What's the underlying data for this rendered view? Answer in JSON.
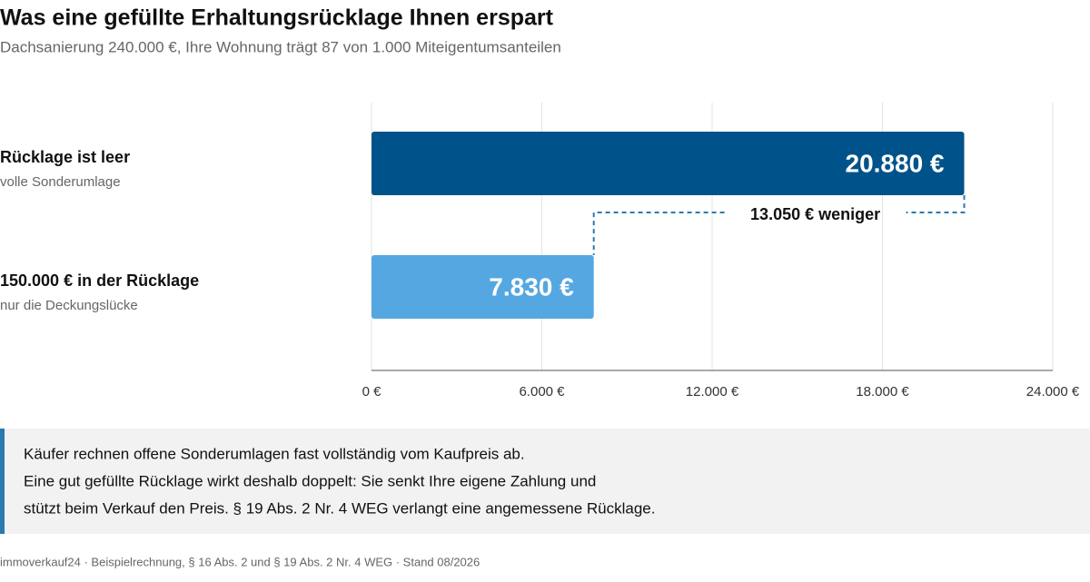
{
  "chart_data": {
    "type": "hbar",
    "title": "Was eine gefüllte Erhaltungsrücklage Ihnen erspart",
    "subtitle": "Dachsanierung 240.000 €, Ihre Wohnung trägt 87 von 1.000 Miteigentumsanteilen",
    "categories": [
      "Rücklage ist leer",
      "150.000 € in der Rücklage"
    ],
    "subcategories": [
      "volle Sonderumlage",
      "nur die Deckungslücke"
    ],
    "values": [
      20880,
      7830
    ],
    "value_labels": [
      "20.880 €",
      "7.830 €"
    ],
    "colors": [
      "#00538a",
      "#55a7e2"
    ],
    "xlim": [
      0,
      24000
    ],
    "xticks": [
      {
        "value": 0,
        "label": "0 €"
      },
      {
        "value": 6000,
        "label": "6.000 €"
      },
      {
        "value": 12000,
        "label": "12.000 €"
      },
      {
        "value": 18000,
        "label": "18.000 €"
      },
      {
        "value": 24000,
        "label": "24.000 €"
      }
    ],
    "grid": true,
    "annotation": "13.050 € weniger"
  },
  "note": [
    "Käufer rechnen offene Sonderumlagen fast vollständig vom Kaufpreis ab.",
    "Eine gut gefüllte Rücklage wirkt deshalb doppelt: Sie senkt Ihre eigene Zahlung und",
    "stützt beim Verkauf den Preis. § 19 Abs. 2 Nr. 4 WEG verlangt eine angemessene Rücklage."
  ],
  "source": "immoverkauf24 · Beispielrechnung, § 16 Abs. 2 und § 19 Abs. 2 Nr. 4 WEG · Stand 08/2026"
}
